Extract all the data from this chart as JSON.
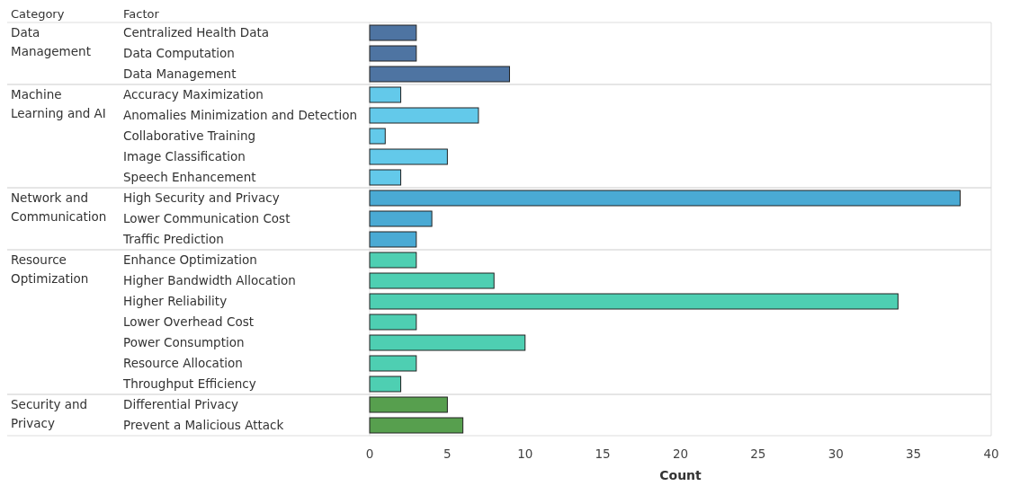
{
  "chart_data": {
    "type": "bar",
    "orientation": "horizontal",
    "xlabel": "Count",
    "categories": [
      "Centralized Health Data",
      "Data Computation",
      "Data Management",
      "Accuracy Maximization",
      "Anomalies Minimization and Detection",
      "Collaborative Training",
      "Image Classification",
      "Speech Enhancement",
      "High Security and Privacy",
      "Lower Communication Cost",
      "Traffic Prediction",
      "Enhance Optimization",
      "Higher Bandwidth Allocation",
      "Higher Reliability",
      "Lower Overhead Cost",
      "Power Consumption",
      "Resource Allocation",
      "Throughput Efficiency",
      "Differential Privacy",
      "Prevent a Malicious Attack"
    ],
    "values": [
      3,
      3,
      9,
      2,
      7,
      1,
      5,
      2,
      38,
      4,
      3,
      3,
      8,
      34,
      3,
      10,
      3,
      2,
      5,
      6
    ],
    "colors": [
      "#4e74a2",
      "#4e74a2",
      "#4e74a2",
      "#63c9ea",
      "#63c9ea",
      "#63c9ea",
      "#63c9ea",
      "#63c9ea",
      "#4aaad4",
      "#4aaad4",
      "#4aaad4",
      "#4ecfb2",
      "#4ecfb2",
      "#4ecfb2",
      "#4ecfb2",
      "#4ecfb2",
      "#4ecfb2",
      "#4ecfb2",
      "#579f4e",
      "#579f4e"
    ],
    "annotations": [
      "Category",
      "Factor",
      "Data Management",
      "Machine Learning and AI",
      "Network and Communication",
      "Resource Optimization",
      "Security and Privacy"
    ],
    "xlim": [
      0,
      40
    ],
    "xticks": [
      0,
      5,
      10,
      15,
      20,
      25,
      30,
      35,
      40
    ]
  }
}
